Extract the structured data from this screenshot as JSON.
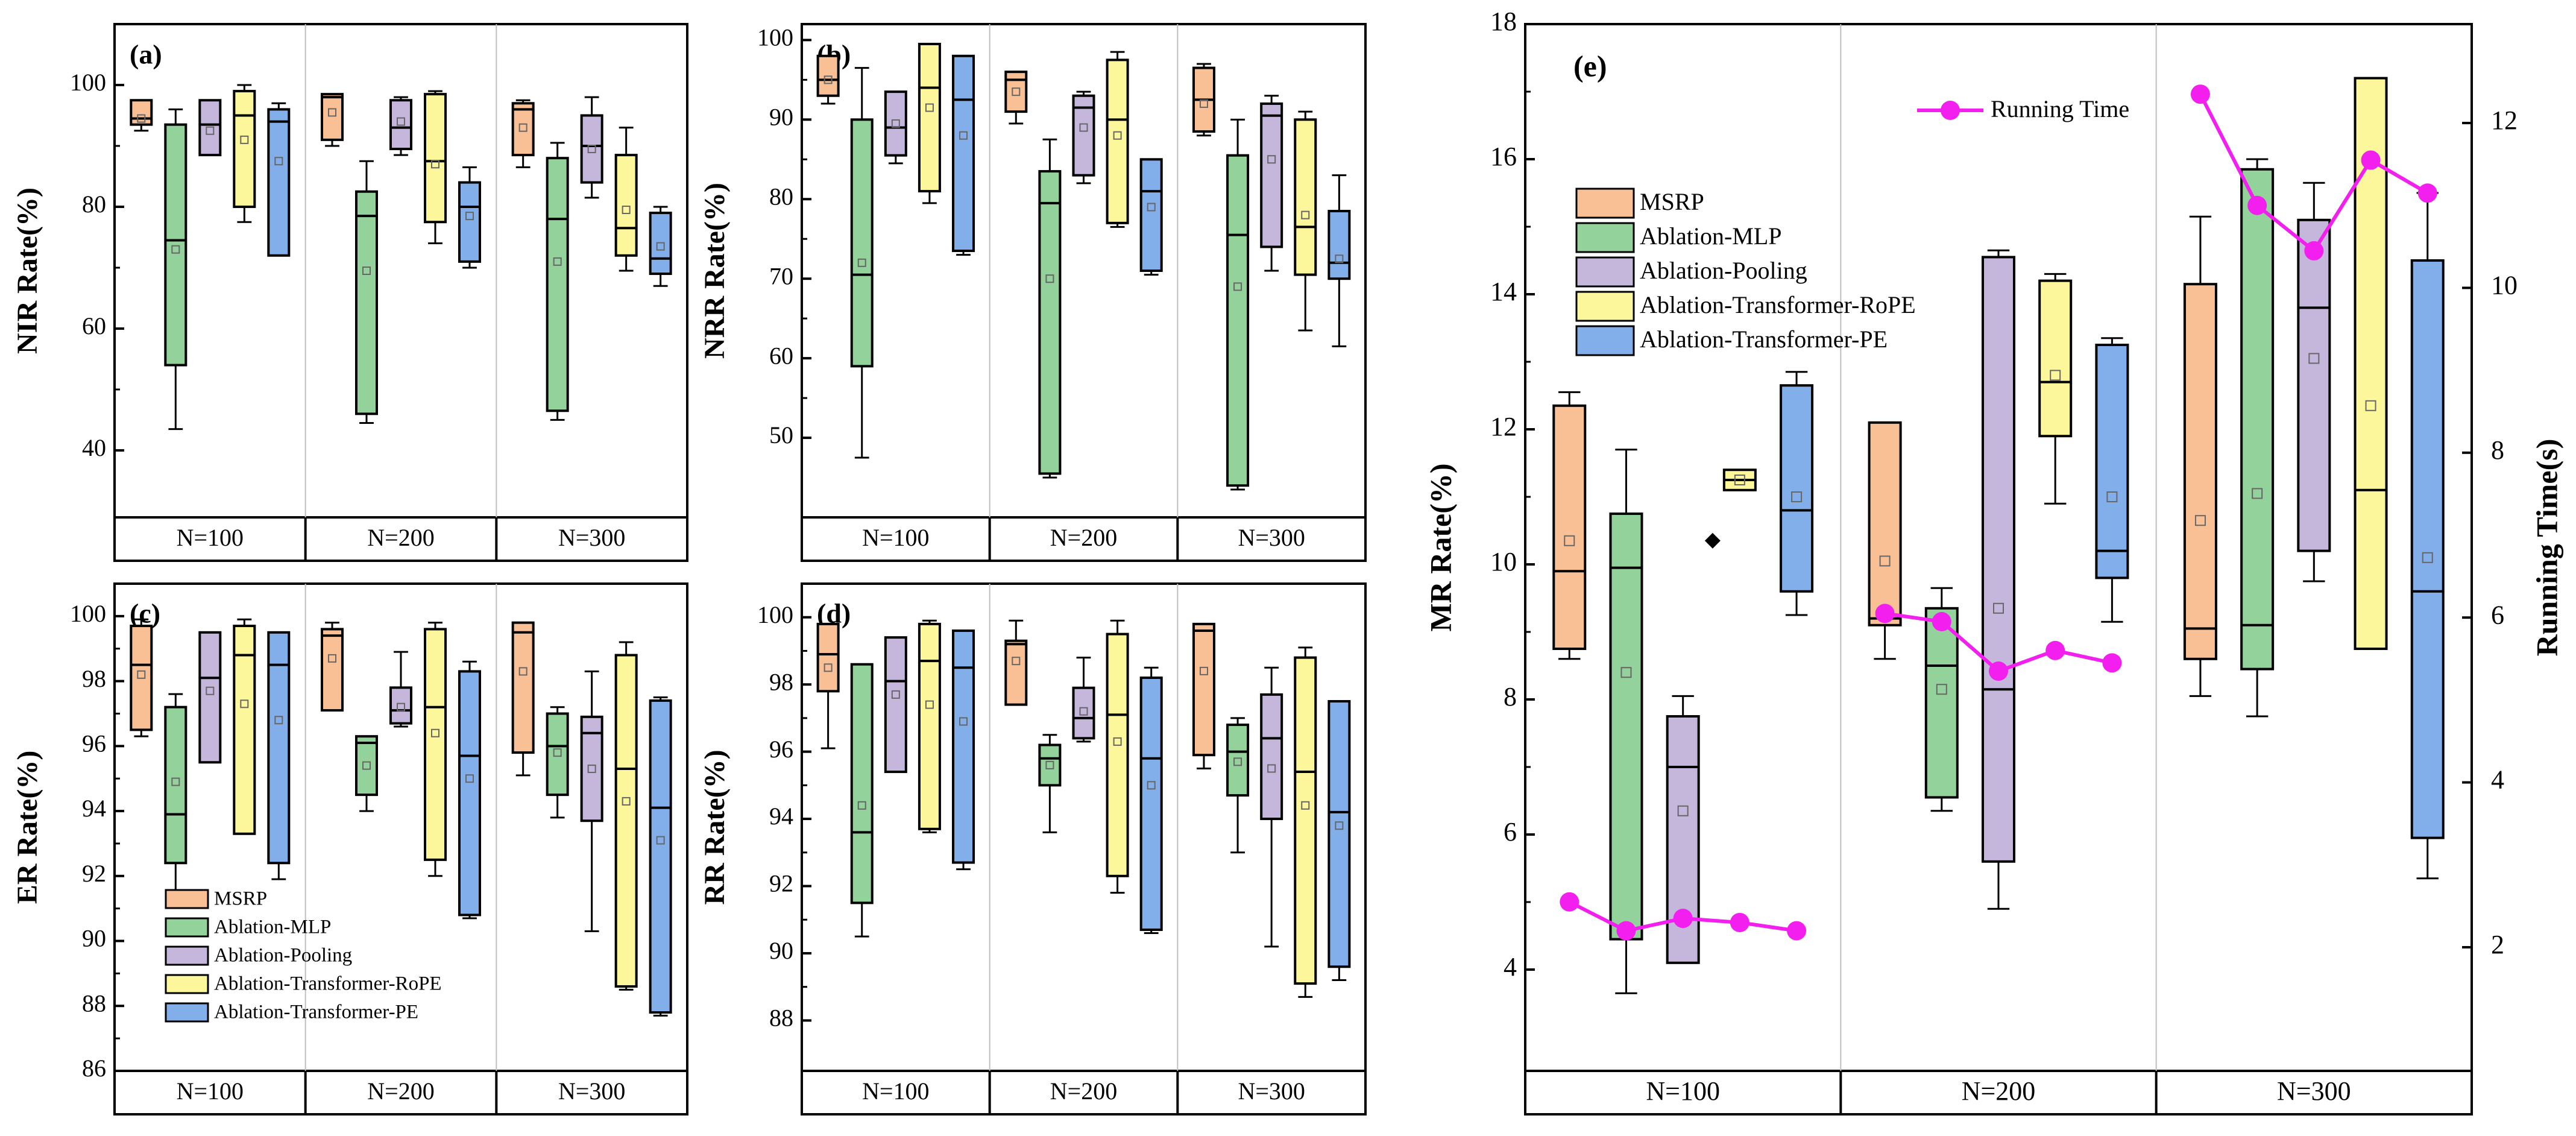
{
  "colors": {
    "MSRP": "#f9c096",
    "Ablation-MLP": "#93d29a",
    "Ablation-Pooling": "#c5b6dc",
    "Ablation-Transformer-RoPE": "#fdf79b",
    "Ablation-Transformer-PE": "#82aeea",
    "running_time": "#f21fee"
  },
  "chart_data": [
    {
      "id": "a",
      "type": "box",
      "title": "(a)",
      "ylabel": "NIR Rate(%)",
      "ylim": [
        29,
        110
      ],
      "yticks": [
        40,
        60,
        80,
        100
      ],
      "groups": [
        "N=100",
        "N=200",
        "N=300"
      ],
      "series_names": [
        "MSRP",
        "Ablation-MLP",
        "Ablation-Pooling",
        "Ablation-Transformer-RoPE",
        "Ablation-Transformer-PE"
      ],
      "boxes": [
        [
          {
            "q1": 93.5,
            "median": 94.5,
            "q3": 97.5,
            "whisker_low": 92.5,
            "whisker_high": 97.5,
            "mean": 94.5
          },
          {
            "q1": 54,
            "median": 74.5,
            "q3": 93.5,
            "whisker_low": 43.5,
            "whisker_high": 96,
            "mean": 73
          },
          {
            "q1": 88.5,
            "median": 93.5,
            "q3": 97.5,
            "whisker_low": 88.5,
            "whisker_high": 97.5,
            "mean": 92.5
          },
          {
            "q1": 80,
            "median": 95,
            "q3": 99,
            "whisker_low": 77.5,
            "whisker_high": 100,
            "mean": 91
          },
          {
            "q1": 72,
            "median": 94,
            "q3": 96,
            "whisker_low": 72,
            "whisker_high": 97,
            "mean": 87.5
          }
        ],
        [
          {
            "q1": 91,
            "median": 98,
            "q3": 98.5,
            "whisker_low": 90,
            "whisker_high": 98.5,
            "mean": 95.5
          },
          {
            "q1": 46,
            "median": 78.5,
            "q3": 82.5,
            "whisker_low": 44.5,
            "whisker_high": 87.5,
            "mean": 69.5
          },
          {
            "q1": 89.5,
            "median": 93,
            "q3": 97.5,
            "whisker_low": 88.5,
            "whisker_high": 98,
            "mean": 94
          },
          {
            "q1": 77.5,
            "median": 87.5,
            "q3": 98.5,
            "whisker_low": 74,
            "whisker_high": 99,
            "mean": 87
          },
          {
            "q1": 71,
            "median": 80,
            "q3": 84,
            "whisker_low": 70,
            "whisker_high": 86.5,
            "mean": 78.5
          }
        ],
        [
          {
            "q1": 88.5,
            "median": 96,
            "q3": 97,
            "whisker_low": 86.5,
            "whisker_high": 97.5,
            "mean": 93
          },
          {
            "q1": 46.5,
            "median": 78,
            "q3": 88,
            "whisker_low": 45,
            "whisker_high": 90.5,
            "mean": 71
          },
          {
            "q1": 84,
            "median": 90,
            "q3": 95,
            "whisker_low": 81.5,
            "whisker_high": 98,
            "mean": 89.5
          },
          {
            "q1": 72,
            "median": 76.5,
            "q3": 88.5,
            "whisker_low": 69.5,
            "whisker_high": 93,
            "mean": 79.5
          },
          {
            "q1": 69,
            "median": 71.5,
            "q3": 79,
            "whisker_low": 67,
            "whisker_high": 80,
            "mean": 73.5
          }
        ]
      ]
    },
    {
      "id": "b",
      "type": "box",
      "title": "(b)",
      "ylabel": "NRR Rate(%)",
      "ylim": [
        40,
        102
      ],
      "yticks": [
        50,
        60,
        70,
        80,
        90,
        100
      ],
      "groups": [
        "N=100",
        "N=200",
        "N=300"
      ],
      "series_names": [
        "MSRP",
        "Ablation-MLP",
        "Ablation-Pooling",
        "Ablation-Transformer-RoPE",
        "Ablation-Transformer-PE"
      ],
      "boxes": [
        [
          {
            "q1": 93,
            "median": 95,
            "q3": 98,
            "whisker_low": 92,
            "whisker_high": 98,
            "mean": 95
          },
          {
            "q1": 59,
            "median": 70.5,
            "q3": 90,
            "whisker_low": 47.5,
            "whisker_high": 96.5,
            "mean": 72
          },
          {
            "q1": 85.5,
            "median": 89,
            "q3": 93.5,
            "whisker_low": 84.5,
            "whisker_high": 93.5,
            "mean": 89.5
          },
          {
            "q1": 81,
            "median": 94,
            "q3": 99.5,
            "whisker_low": 79.5,
            "whisker_high": 99.5,
            "mean": 91.5
          },
          {
            "q1": 73.5,
            "median": 92.5,
            "q3": 98,
            "whisker_low": 73,
            "whisker_high": 98,
            "mean": 88
          }
        ],
        [
          {
            "q1": 91,
            "median": 95,
            "q3": 96,
            "whisker_low": 89.5,
            "whisker_high": 96,
            "mean": 93.5
          },
          {
            "q1": 45.5,
            "median": 79.5,
            "q3": 83.5,
            "whisker_low": 45,
            "whisker_high": 87.5,
            "mean": 70
          },
          {
            "q1": 83,
            "median": 91.5,
            "q3": 93,
            "whisker_low": 82,
            "whisker_high": 93.5,
            "mean": 89
          },
          {
            "q1": 77,
            "median": 90,
            "q3": 97.5,
            "whisker_low": 76.5,
            "whisker_high": 98.5,
            "mean": 88
          },
          {
            "q1": 71,
            "median": 81,
            "q3": 85,
            "whisker_low": 70.5,
            "whisker_high": 85,
            "mean": 79
          }
        ],
        [
          {
            "q1": 88.5,
            "median": 92.5,
            "q3": 96.5,
            "whisker_low": 88,
            "whisker_high": 97,
            "mean": 92
          },
          {
            "q1": 44,
            "median": 75.5,
            "q3": 85.5,
            "whisker_low": 43.5,
            "whisker_high": 90,
            "mean": 69
          },
          {
            "q1": 74,
            "median": 90.5,
            "q3": 92,
            "whisker_low": 71,
            "whisker_high": 93,
            "mean": 85
          },
          {
            "q1": 70.5,
            "median": 76.5,
            "q3": 90,
            "whisker_low": 63.5,
            "whisker_high": 91,
            "mean": 78
          },
          {
            "q1": 70,
            "median": 72,
            "q3": 78.5,
            "whisker_low": 61.5,
            "whisker_high": 83,
            "mean": 72.5
          }
        ]
      ]
    },
    {
      "id": "c",
      "type": "box",
      "title": "(c)",
      "ylabel": "ER Rate(%)",
      "ylim": [
        86,
        101
      ],
      "yticks": [
        86,
        88,
        90,
        92,
        94,
        96,
        98,
        100
      ],
      "groups": [
        "N=100",
        "N=200",
        "N=300"
      ],
      "series_names": [
        "MSRP",
        "Ablation-MLP",
        "Ablation-Pooling",
        "Ablation-Transformer-RoPE",
        "Ablation-Transformer-PE"
      ],
      "legend": {
        "position": "bottom-left",
        "labels": [
          "MSRP",
          "Ablation-MLP",
          "Ablation-Pooling",
          "Ablation-Transformer-RoPE",
          "Ablation-Transformer-PE"
        ]
      },
      "boxes": [
        [
          {
            "q1": 96.5,
            "median": 98.5,
            "q3": 99.7,
            "whisker_low": 96.3,
            "whisker_high": 99.9,
            "mean": 98.2
          },
          {
            "q1": 92.4,
            "median": 93.9,
            "q3": 97.2,
            "whisker_low": 91.5,
            "whisker_high": 97.6,
            "mean": 94.9
          },
          {
            "q1": 95.5,
            "median": 98.1,
            "q3": 99.5,
            "whisker_low": 95.5,
            "whisker_high": 99.5,
            "mean": 97.7
          },
          {
            "q1": 93.3,
            "median": 98.8,
            "q3": 99.7,
            "whisker_low": 93.3,
            "whisker_high": 99.9,
            "mean": 97.3
          },
          {
            "q1": 92.4,
            "median": 98.5,
            "q3": 99.5,
            "whisker_low": 91.9,
            "whisker_high": 99.5,
            "mean": 96.8
          }
        ],
        [
          {
            "q1": 97.1,
            "median": 99.4,
            "q3": 99.6,
            "whisker_low": 97.1,
            "whisker_high": 99.8,
            "mean": 98.7
          },
          {
            "q1": 94.5,
            "median": 96.1,
            "q3": 96.3,
            "whisker_low": 94,
            "whisker_high": 96.3,
            "mean": 95.4
          },
          {
            "q1": 96.7,
            "median": 97.1,
            "q3": 97.8,
            "whisker_low": 96.6,
            "whisker_high": 98.9,
            "mean": 97.2
          },
          {
            "q1": 92.5,
            "median": 97.2,
            "q3": 99.6,
            "whisker_low": 92,
            "whisker_high": 99.8,
            "mean": 96.4
          },
          {
            "q1": 90.8,
            "median": 95.7,
            "q3": 98.3,
            "whisker_low": 90.7,
            "whisker_high": 98.6,
            "mean": 95
          }
        ],
        [
          {
            "q1": 95.8,
            "median": 99.5,
            "q3": 99.8,
            "whisker_low": 95.1,
            "whisker_high": 99.8,
            "mean": 98.3
          },
          {
            "q1": 94.5,
            "median": 96,
            "q3": 97,
            "whisker_low": 93.8,
            "whisker_high": 97.2,
            "mean": 95.8
          },
          {
            "q1": 93.7,
            "median": 96.4,
            "q3": 96.9,
            "whisker_low": 90.3,
            "whisker_high": 98.3,
            "mean": 95.3
          },
          {
            "q1": 88.6,
            "median": 95.3,
            "q3": 98.8,
            "whisker_low": 88.5,
            "whisker_high": 99.2,
            "mean": 94.3
          },
          {
            "q1": 87.8,
            "median": 94.1,
            "q3": 97.4,
            "whisker_low": 87.7,
            "whisker_high": 97.5,
            "mean": 93.1
          }
        ]
      ]
    },
    {
      "id": "d",
      "type": "box",
      "title": "(d)",
      "ylabel": "RR Rate(%)",
      "ylim": [
        86.5,
        101
      ],
      "yticks": [
        88,
        90,
        92,
        94,
        96,
        98,
        100
      ],
      "groups": [
        "N=100",
        "N=200",
        "N=300"
      ],
      "series_names": [
        "MSRP",
        "Ablation-MLP",
        "Ablation-Pooling",
        "Ablation-Transformer-RoPE",
        "Ablation-Transformer-PE"
      ],
      "boxes": [
        [
          {
            "q1": 97.8,
            "median": 98.9,
            "q3": 99.8,
            "whisker_low": 96.1,
            "whisker_high": 99.8,
            "mean": 98.5
          },
          {
            "q1": 91.5,
            "median": 93.6,
            "q3": 98.6,
            "whisker_low": 90.5,
            "whisker_high": 98.6,
            "mean": 94.4
          },
          {
            "q1": 95.4,
            "median": 98.1,
            "q3": 99.4,
            "whisker_low": 95.4,
            "whisker_high": 99.4,
            "mean": 97.7
          },
          {
            "q1": 93.7,
            "median": 98.7,
            "q3": 99.8,
            "whisker_low": 93.6,
            "whisker_high": 99.9,
            "mean": 97.4
          },
          {
            "q1": 92.7,
            "median": 98.5,
            "q3": 99.6,
            "whisker_low": 92.5,
            "whisker_high": 99.6,
            "mean": 96.9
          }
        ],
        [
          {
            "q1": 97.4,
            "median": 99.2,
            "q3": 99.3,
            "whisker_low": 97.4,
            "whisker_high": 99.9,
            "mean": 98.7
          },
          {
            "q1": 95,
            "median": 95.8,
            "q3": 96.2,
            "whisker_low": 93.6,
            "whisker_high": 96.5,
            "mean": 95.6
          },
          {
            "q1": 96.4,
            "median": 97,
            "q3": 97.9,
            "whisker_low": 96.3,
            "whisker_high": 98.8,
            "mean": 97.2
          },
          {
            "q1": 92.3,
            "median": 97.1,
            "q3": 99.5,
            "whisker_low": 91.8,
            "whisker_high": 99.9,
            "mean": 96.3
          },
          {
            "q1": 90.7,
            "median": 95.8,
            "q3": 98.2,
            "whisker_low": 90.6,
            "whisker_high": 98.5,
            "mean": 95
          }
        ],
        [
          {
            "q1": 95.9,
            "median": 99.6,
            "q3": 99.8,
            "whisker_low": 95.5,
            "whisker_high": 99.8,
            "mean": 98.4
          },
          {
            "q1": 94.7,
            "median": 96,
            "q3": 96.8,
            "whisker_low": 93,
            "whisker_high": 97,
            "mean": 95.7
          },
          {
            "q1": 94,
            "median": 96.4,
            "q3": 97.7,
            "whisker_low": 90.2,
            "whisker_high": 98.5,
            "mean": 95.5
          },
          {
            "q1": 89.1,
            "median": 95.4,
            "q3": 98.8,
            "whisker_low": 88.7,
            "whisker_high": 99.1,
            "mean": 94.4
          },
          {
            "q1": 89.6,
            "median": 94.2,
            "q3": 97.5,
            "whisker_low": 89.2,
            "whisker_high": 97.5,
            "mean": 93.8
          }
        ]
      ]
    },
    {
      "id": "e",
      "type": "box",
      "title": "(e)",
      "ylabel": "MR Rate(%)",
      "ylabel_right": "Running Time(s)",
      "ylim": [
        2.5,
        18
      ],
      "yticks": [
        4,
        6,
        8,
        10,
        12,
        14,
        16,
        18
      ],
      "ylim_right": [
        0.5,
        13.2
      ],
      "yticks_right": [
        2,
        4,
        6,
        8,
        10,
        12
      ],
      "groups": [
        "N=100",
        "N=200",
        "N=300"
      ],
      "series_names": [
        "MSRP",
        "Ablation-MLP",
        "Ablation-Pooling",
        "Ablation-Transformer-RoPE",
        "Ablation-Transformer-PE"
      ],
      "legend": {
        "position": "top-left",
        "labels": [
          "MSRP",
          "Ablation-MLP",
          "Ablation-Pooling",
          "Ablation-Transformer-RoPE",
          "Ablation-Transformer-PE"
        ]
      },
      "line_legend": "Running Time",
      "outliers": [
        {
          "group": 0,
          "series": 3,
          "value": 10.35
        }
      ],
      "boxes": [
        [
          {
            "q1": 8.75,
            "median": 9.9,
            "q3": 12.35,
            "whisker_low": 8.6,
            "whisker_high": 12.55,
            "mean": 10.35
          },
          {
            "q1": 4.45,
            "median": 9.95,
            "q3": 10.75,
            "whisker_low": 3.65,
            "whisker_high": 11.7,
            "mean": 8.4
          },
          {
            "q1": 4.1,
            "median": 7,
            "q3": 7.75,
            "whisker_low": 4.1,
            "whisker_high": 8.05,
            "mean": 6.35
          },
          {
            "q1": 11.1,
            "median": 11.25,
            "q3": 11.4,
            "whisker_low": 11.1,
            "whisker_high": 11.4,
            "mean": 11.25
          },
          {
            "q1": 9.6,
            "median": 10.8,
            "q3": 12.65,
            "whisker_low": 9.25,
            "whisker_high": 12.85,
            "mean": 11
          }
        ],
        [
          {
            "q1": 9.1,
            "median": 9.2,
            "q3": 12.1,
            "whisker_low": 8.6,
            "whisker_high": 12.1,
            "mean": 10.05
          },
          {
            "q1": 6.55,
            "median": 8.5,
            "q3": 9.35,
            "whisker_low": 6.35,
            "whisker_high": 9.65,
            "mean": 8.15
          },
          {
            "q1": 5.6,
            "median": 8.15,
            "q3": 14.55,
            "whisker_low": 4.9,
            "whisker_high": 14.65,
            "mean": 9.35
          },
          {
            "q1": 11.9,
            "median": 12.7,
            "q3": 14.2,
            "whisker_low": 10.9,
            "whisker_high": 14.3,
            "mean": 12.8
          },
          {
            "q1": 9.8,
            "median": 10.2,
            "q3": 13.25,
            "whisker_low": 9.15,
            "whisker_high": 13.35,
            "mean": 11
          }
        ],
        [
          {
            "q1": 8.6,
            "median": 9.05,
            "q3": 14.15,
            "whisker_low": 8.05,
            "whisker_high": 15.15,
            "mean": 10.65
          },
          {
            "q1": 8.45,
            "median": 9.1,
            "q3": 15.85,
            "whisker_low": 7.75,
            "whisker_high": 16,
            "mean": 11.05
          },
          {
            "q1": 10.2,
            "median": 13.8,
            "q3": 15.1,
            "whisker_low": 9.75,
            "whisker_high": 15.65,
            "mean": 13.05
          },
          {
            "q1": 8.75,
            "median": 11.1,
            "q3": 17.2,
            "whisker_low": 8.75,
            "whisker_high": 17.2,
            "mean": 12.35
          },
          {
            "q1": 5.95,
            "median": 9.6,
            "q3": 14.5,
            "whisker_low": 5.35,
            "whisker_high": 15.5,
            "mean": 10.1
          }
        ]
      ],
      "running_time": [
        [
          2.55,
          2.2,
          2.35,
          2.3,
          2.2
        ],
        [
          6.05,
          5.95,
          5.35,
          5.6,
          5.45
        ],
        [
          12.35,
          11,
          10.45,
          11.55,
          11.15
        ]
      ]
    }
  ]
}
